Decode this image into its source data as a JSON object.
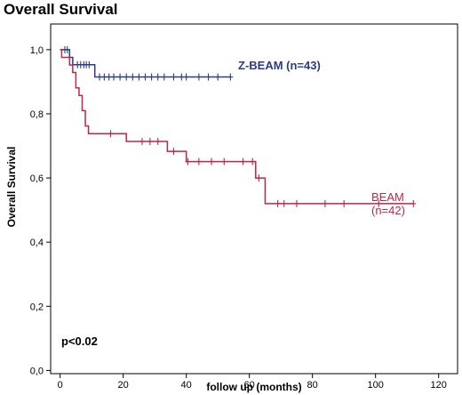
{
  "chart_data": {
    "type": "line",
    "subtype": "kaplan-meier step",
    "title": "Overall Survival",
    "xlabel": "follow up (months)",
    "ylabel": "Overall Survival",
    "xlim": [
      -3,
      126
    ],
    "ylim": [
      -0.01,
      1.08
    ],
    "xticks": [
      0,
      20,
      40,
      60,
      80,
      100,
      120
    ],
    "xtick_labels": [
      "0",
      "20",
      "40",
      "60",
      "80",
      "100",
      "120"
    ],
    "yticks": [
      0,
      0.2,
      0.4,
      0.6,
      0.8,
      1.0
    ],
    "ytick_labels": [
      "0,0",
      "0,2",
      "0,4",
      "0,6",
      "0,8",
      "1,0"
    ],
    "grid": false,
    "annotation": "p<0.02",
    "series": [
      {
        "name": "Z-BEAM (n=43)",
        "label_lines": [
          "Z-BEAM (n=43)"
        ],
        "color": "#2b3d83",
        "steps": [
          [
            0,
            1.0
          ],
          [
            3.0,
            0.976
          ],
          [
            4.0,
            0.953
          ],
          [
            11.0,
            0.915
          ],
          [
            54.0,
            0.915
          ]
        ],
        "censored": [
          [
            1.5,
            1.0
          ],
          [
            2.3,
            1.0
          ],
          [
            5.5,
            0.953
          ],
          [
            6.5,
            0.953
          ],
          [
            7.5,
            0.953
          ],
          [
            8.3,
            0.953
          ],
          [
            9.2,
            0.953
          ],
          [
            12.5,
            0.915
          ],
          [
            14,
            0.915
          ],
          [
            15.5,
            0.915
          ],
          [
            17,
            0.915
          ],
          [
            19,
            0.915
          ],
          [
            21,
            0.915
          ],
          [
            23,
            0.915
          ],
          [
            25,
            0.915
          ],
          [
            27,
            0.915
          ],
          [
            29,
            0.915
          ],
          [
            31,
            0.915
          ],
          [
            33,
            0.915
          ],
          [
            36,
            0.915
          ],
          [
            38.5,
            0.915
          ],
          [
            40,
            0.915
          ],
          [
            44,
            0.915
          ],
          [
            47,
            0.915
          ],
          [
            50,
            0.915
          ],
          [
            54,
            0.915
          ]
        ]
      },
      {
        "name": "BEAM (n=42)",
        "label_lines": [
          "BEAM",
          "(n=42)"
        ],
        "color": "#c0264a",
        "steps": [
          [
            0,
            1.0
          ],
          [
            0.5,
            0.976
          ],
          [
            3.0,
            0.952
          ],
          [
            4.0,
            0.929
          ],
          [
            5.0,
            0.881
          ],
          [
            6.0,
            0.857
          ],
          [
            7.0,
            0.81
          ],
          [
            8.0,
            0.762
          ],
          [
            9.0,
            0.738
          ],
          [
            21.0,
            0.714
          ],
          [
            34.0,
            0.683
          ],
          [
            40.0,
            0.651
          ],
          [
            62.0,
            0.6
          ],
          [
            65.0,
            0.52
          ],
          [
            112.0,
            0.52
          ]
        ],
        "censored": [
          [
            16,
            0.738
          ],
          [
            26,
            0.714
          ],
          [
            28.5,
            0.714
          ],
          [
            31,
            0.714
          ],
          [
            36,
            0.683
          ],
          [
            40.5,
            0.651
          ],
          [
            44,
            0.651
          ],
          [
            48,
            0.651
          ],
          [
            52,
            0.651
          ],
          [
            58,
            0.651
          ],
          [
            61,
            0.651
          ],
          [
            63,
            0.6
          ],
          [
            69,
            0.52
          ],
          [
            71,
            0.52
          ],
          [
            75,
            0.52
          ],
          [
            84,
            0.52
          ],
          [
            90,
            0.52
          ],
          [
            101,
            0.52
          ],
          [
            112,
            0.52
          ]
        ]
      }
    ]
  }
}
